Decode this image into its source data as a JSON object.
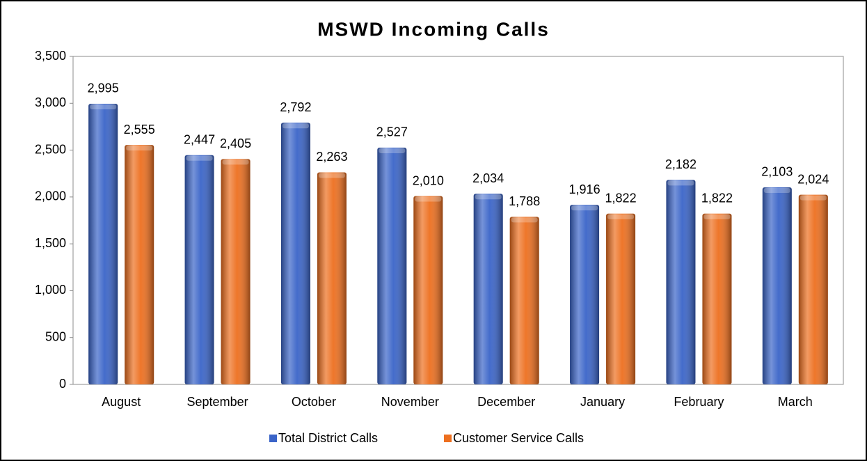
{
  "chart_data": {
    "type": "bar",
    "title": "MSWD Incoming Calls",
    "categories": [
      "August",
      "September",
      "October",
      "November",
      "December",
      "January",
      "February",
      "March"
    ],
    "series": [
      {
        "name": "Total District Calls",
        "color": "#3a64c8",
        "values": [
          2995,
          2447,
          2792,
          2527,
          2034,
          1916,
          2182,
          2103
        ],
        "value_labels": [
          "2,995",
          "2,447",
          "2,792",
          "2,527",
          "2,034",
          "1,916",
          "2,182",
          "2,103"
        ]
      },
      {
        "name": "Customer Service Calls",
        "color": "#ed6f1f",
        "values": [
          2555,
          2405,
          2263,
          2010,
          1788,
          1822,
          1822,
          2024
        ],
        "value_labels": [
          "2,555",
          "2,405",
          "2,263",
          "2,010",
          "1,788",
          "1,822",
          "1,822",
          "2,024"
        ]
      }
    ],
    "ylim": [
      0,
      3500
    ],
    "yticks": [
      0,
      500,
      {
        "value": 1000,
        "label": "1,000"
      },
      {
        "value": 1500,
        "label": "1,500"
      },
      {
        "value": 2000,
        "label": "2,000"
      },
      {
        "value": 2500,
        "label": "2,500"
      },
      {
        "value": 3000,
        "label": "3,000"
      },
      {
        "value": 3500,
        "label": "3,500"
      }
    ],
    "grid": false,
    "legend": "bottom"
  }
}
